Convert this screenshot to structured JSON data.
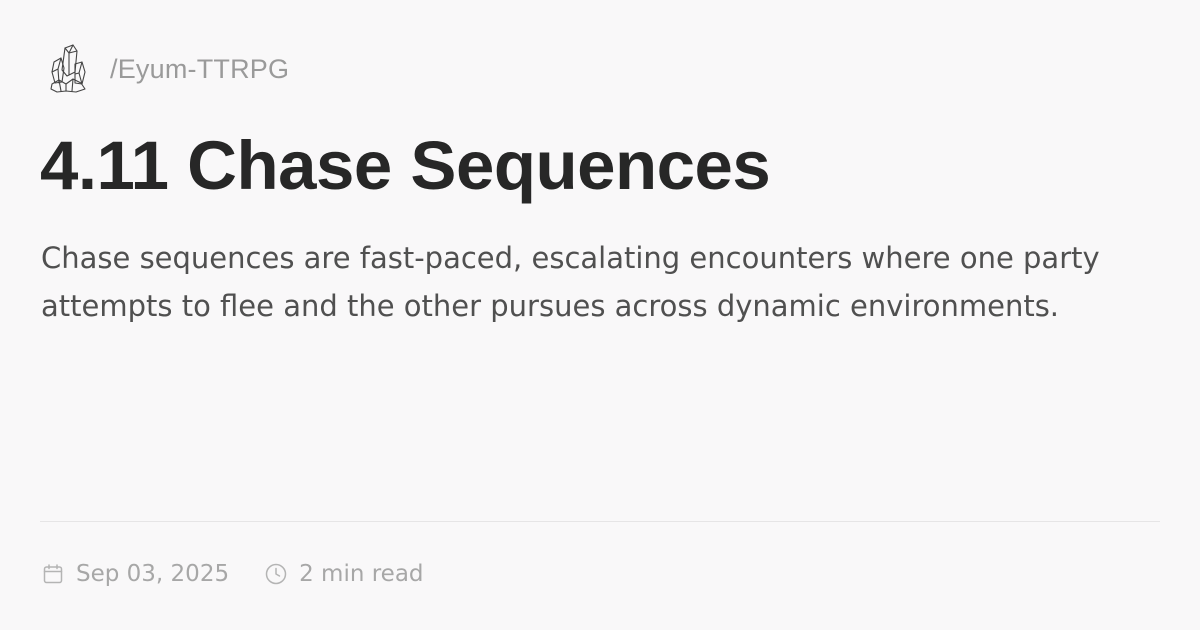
{
  "site": {
    "logo_icon": "crystal-cluster-icon",
    "name": "/Eyum-TTRPG"
  },
  "article": {
    "title": "4.11 Chase Sequences",
    "description": "Chase sequences are fast-paced, escalating encounters where one party attempts to flee and the other pursues across dynamic environments."
  },
  "meta": {
    "date_icon": "calendar-icon",
    "date": "Sep 03, 2025",
    "read_time_icon": "clock-icon",
    "read_time": "2 min read"
  },
  "colors": {
    "background": "#f9f8f9",
    "title": "#272727",
    "description": "#505050",
    "muted": "#9a9a9a",
    "divider": "#e6e5e6"
  }
}
